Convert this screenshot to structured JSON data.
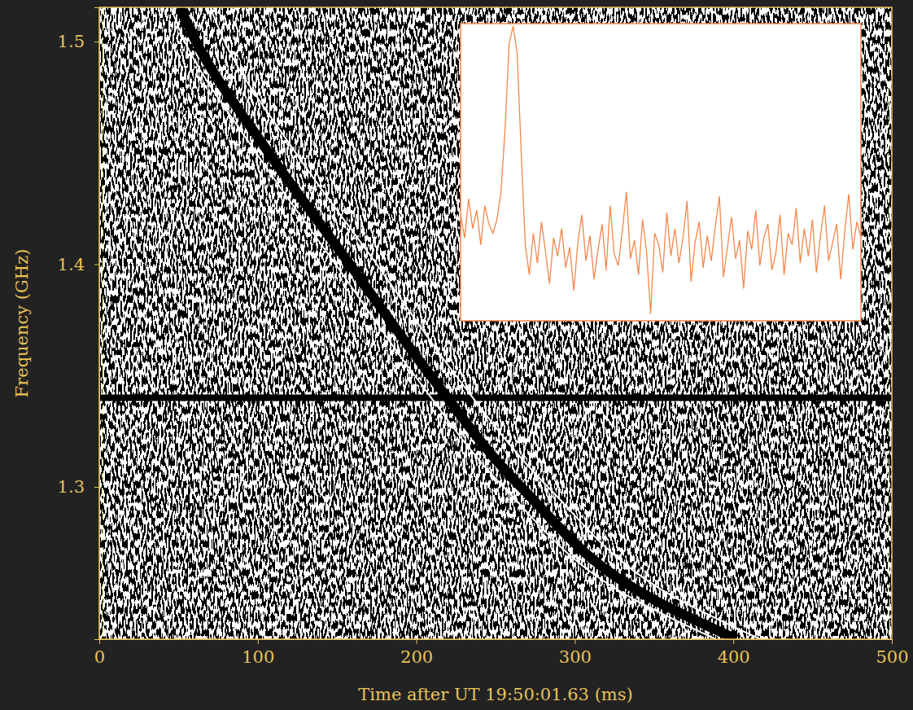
{
  "chart_data": [
    {
      "type": "line",
      "x_label": "Time after UT 19:50:01.63 (ms)",
      "y_label": "Frequency (GHz)",
      "xlim": [
        0,
        500
      ],
      "ylim": [
        1.2316,
        1.5154
      ],
      "xticks": [
        0,
        100,
        200,
        300,
        400,
        500
      ],
      "yticks": [
        1.3,
        1.4,
        1.5
      ],
      "grid": false,
      "rfi_frequency": 1.34,
      "rfi_color": "#000000",
      "series": [
        {
          "color": "#000000",
          "line_style": "solid",
          "x": [
            51,
            61,
            107,
            158,
            209,
            266,
            348,
            402
          ],
          "values": [
            1.5154,
            1.5,
            1.45,
            1.4,
            1.35,
            1.3,
            1.25,
            1.2316
          ]
        },
        {
          "color": "#ffffff",
          "line_style": "solid",
          "x": [
            45,
            54,
            99,
            149,
            199,
            255,
            336,
            389
          ],
          "values": [
            1.5154,
            1.5,
            1.45,
            1.4,
            1.35,
            1.3,
            1.25,
            1.2316
          ]
        },
        {
          "color": "#ffffff",
          "line_style": "solid",
          "x": [
            70,
            79,
            124,
            175,
            225,
            283,
            364,
            417
          ],
          "values": [
            1.5154,
            1.5,
            1.45,
            1.4,
            1.35,
            1.3,
            1.25,
            1.2316
          ]
        }
      ]
    },
    {
      "type": "line",
      "tick_labels": false,
      "color": "#f4874b",
      "ylim": [
        -28,
        101
      ],
      "values": [
        18,
        8,
        25,
        12,
        20,
        5,
        22,
        14,
        10,
        16,
        28,
        55,
        92,
        100,
        88,
        45,
        5,
        -8,
        10,
        -3,
        15,
        2,
        -12,
        8,
        0,
        12,
        -5,
        4,
        -15,
        6,
        18,
        -2,
        9,
        -10,
        3,
        14,
        -6,
        22,
        1,
        -4,
        11,
        28,
        -1,
        7,
        -8,
        16,
        2,
        -25,
        10,
        5,
        -7,
        19,
        0,
        12,
        -3,
        8,
        24,
        -11,
        6,
        15,
        -5,
        9,
        -2,
        13,
        26,
        -9,
        4,
        17,
        -1,
        7,
        -14,
        11,
        3,
        20,
        -4,
        8,
        14,
        -6,
        2,
        18,
        -8,
        10,
        5,
        21,
        -3,
        12,
        0,
        16,
        -7,
        9,
        22,
        -2,
        6,
        14,
        -10,
        11,
        27,
        3,
        15,
        8
      ]
    }
  ]
}
